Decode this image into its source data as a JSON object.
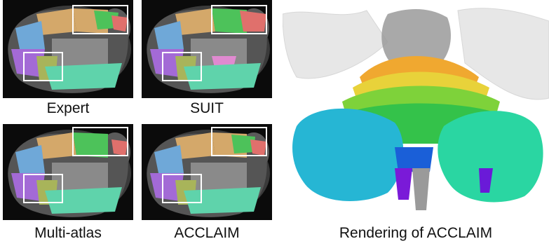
{
  "panels": [
    {
      "caption": "Expert"
    },
    {
      "caption": "SUIT"
    },
    {
      "caption": "Multi-atlas"
    },
    {
      "caption": "ACCLAIM"
    }
  ],
  "rendering": {
    "caption": "Rendering of ACCLAIM"
  },
  "colors": {
    "tan": "#d4a86a",
    "blue": "#6fa8d8",
    "purple": "#a36ad6",
    "olive": "#a8b45a",
    "teal": "#5fd3ab",
    "green": "#4dc25a",
    "red": "#e0706c",
    "pink": "#e08ad0",
    "box": "#ffffff"
  }
}
